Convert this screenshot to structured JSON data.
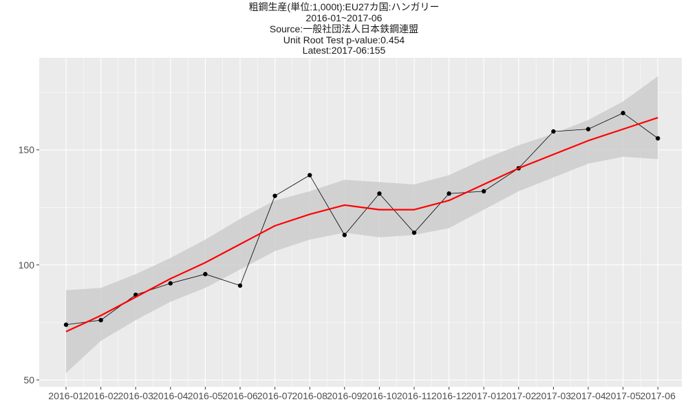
{
  "chart_data": {
    "type": "line",
    "title_lines": [
      "粗鋼生産(単位:1,000t):EU27カ国:ハンガリー",
      "2016-01~2017-06",
      "Source:一般社団法人日本鉄鋼連盟",
      "Unit Root Test p-value:0.454",
      "Latest:2017-06:155"
    ],
    "x": [
      "2016-01",
      "2016-02",
      "2016-03",
      "2016-04",
      "2016-05",
      "2016-06",
      "2016-07",
      "2016-08",
      "2016-09",
      "2016-10",
      "2016-11",
      "2016-12",
      "2017-01",
      "2017-02",
      "2017-03",
      "2017-04",
      "2017-05",
      "2017-06"
    ],
    "series": [
      {
        "values": [
          74,
          76,
          87,
          92,
          96,
          91,
          130,
          139,
          113,
          131,
          114,
          131,
          132,
          142,
          158,
          159,
          166,
          155
        ]
      }
    ],
    "smooth": {
      "values": [
        71,
        78,
        86,
        94,
        101,
        109,
        117,
        122,
        126,
        124,
        124,
        128,
        135,
        142,
        148,
        154,
        159,
        164
      ],
      "lower": [
        53,
        67,
        76,
        84,
        90,
        98,
        106,
        111,
        114,
        112,
        113,
        116,
        124,
        132,
        138,
        144,
        147,
        146
      ],
      "upper": [
        89,
        90,
        96,
        103,
        111,
        120,
        128,
        132,
        137,
        136,
        135,
        139,
        146,
        152,
        157,
        163,
        171,
        182
      ]
    },
    "ylim": [
      47,
      190
    ],
    "yticks": [
      50,
      100,
      150
    ],
    "colors": {
      "panel": "#ebebeb",
      "grid_major": "#ffffff",
      "band": "#cccccc",
      "smooth": "#ff0000",
      "line": "#000000"
    }
  }
}
